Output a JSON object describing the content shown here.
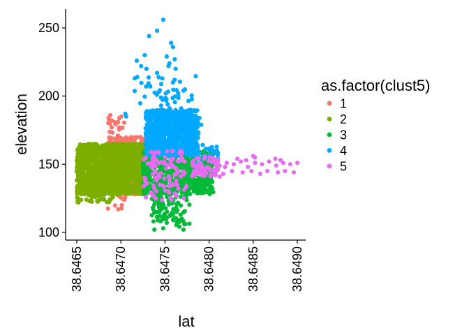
{
  "chart_data": {
    "type": "scatter",
    "title": "",
    "xlabel": "lat",
    "ylabel": "elevation",
    "xlim": [
      38.6464,
      38.649
    ],
    "ylim": [
      96,
      260
    ],
    "x_ticks": [
      38.6465,
      38.647,
      38.6475,
      38.648,
      38.6485,
      38.649
    ],
    "x_tick_labels": [
      "38.6465",
      "38.6470",
      "38.6475",
      "38.6480",
      "38.6485",
      "38.6490"
    ],
    "y_ticks": [
      100,
      150,
      200,
      250
    ],
    "y_tick_labels": [
      "100",
      "150",
      "200",
      "250"
    ],
    "grid": false,
    "legend": {
      "title": "as.factor(clust5)",
      "placement": "right"
    },
    "series": [
      {
        "name": "1",
        "color": "#F8766D",
        "clusters": [
          {
            "x_range": [
              38.64685,
              38.64727
            ],
            "y_range": [
              128,
              170
            ],
            "count": 420
          },
          {
            "x_range": [
              38.64685,
              38.64705
            ],
            "y_range": [
              160,
              186
            ],
            "count": 26
          },
          {
            "x_range": [
              38.64685,
              38.64705
            ],
            "y_range": [
              117,
              128
            ],
            "count": 8
          }
        ],
        "points": [
          [
            38.64688,
            186
          ],
          [
            38.64686,
            184
          ],
          [
            38.64693,
            181
          ],
          [
            38.64698,
            177
          ],
          [
            38.64695,
            166
          ],
          [
            38.64701,
            120
          ],
          [
            38.64697,
            117
          ],
          [
            38.64704,
            124
          ]
        ]
      },
      {
        "name": "2",
        "color": "#7CAE00",
        "clusters": [
          {
            "x_range": [
              38.6465,
              38.64728
            ],
            "y_range": [
              128,
              165
            ],
            "count": 1500
          },
          {
            "x_range": [
              38.6465,
              38.6469
            ],
            "y_range": [
              122,
              130
            ],
            "count": 40
          }
        ],
        "points": [
          [
            38.64652,
            122
          ],
          [
            38.64661,
            124
          ],
          [
            38.64671,
            126
          ],
          [
            38.64681,
            124
          ],
          [
            38.64691,
            126
          ]
        ]
      },
      {
        "name": "3",
        "color": "#00BA38",
        "clusters": [
          {
            "x_range": [
              38.64725,
              38.64805
            ],
            "y_range": [
              128,
              160
            ],
            "count": 700
          },
          {
            "x_range": [
              38.64735,
              38.6476
            ],
            "y_range": [
              108,
              128
            ],
            "count": 60
          },
          {
            "x_range": [
              38.64762,
              38.64778
            ],
            "y_range": [
              103,
              127
            ],
            "count": 28
          }
        ],
        "points": [
          [
            38.64738,
            102
          ],
          [
            38.64748,
            103
          ],
          [
            38.64771,
            102
          ],
          [
            38.64772,
            106
          ],
          [
            38.64769,
            110
          ],
          [
            38.64752,
            107
          ],
          [
            38.64744,
            112
          ]
        ]
      },
      {
        "name": "4",
        "color": "#00A9FF",
        "clusters": [
          {
            "x_range": [
              38.64728,
              38.64788
            ],
            "y_range": [
              156,
              190
            ],
            "count": 900
          },
          {
            "x_range": [
              38.64715,
              38.64785
            ],
            "y_range": [
              185,
              215
            ],
            "count": 45
          },
          {
            "x_range": [
              38.64785,
              38.6481
            ],
            "y_range": [
              150,
              165
            ],
            "count": 25
          }
        ],
        "points": [
          [
            38.64748,
            256
          ],
          [
            38.64741,
            248
          ],
          [
            38.64732,
            244
          ],
          [
            38.64757,
            239
          ],
          [
            38.64759,
            236
          ],
          [
            38.64727,
            230
          ],
          [
            38.64752,
            229
          ],
          [
            38.64755,
            224
          ],
          [
            38.64761,
            227
          ],
          [
            38.64754,
            222
          ],
          [
            38.64762,
            220
          ],
          [
            38.64718,
            226
          ],
          [
            38.64723,
            222
          ],
          [
            38.64729,
            220
          ],
          [
            38.64741,
            217
          ],
          [
            38.64747,
            213
          ],
          [
            38.64759,
            210
          ],
          [
            38.64771,
            204
          ],
          [
            38.64765,
            202
          ],
          [
            38.64743,
            203
          ],
          [
            38.64705,
            187
          ],
          [
            38.64706,
            185
          ],
          [
            38.64789,
            184
          ],
          [
            38.64791,
            179
          ],
          [
            38.64769,
            186
          ],
          [
            38.64781,
            176
          ],
          [
            38.64805,
            160
          ],
          [
            38.64808,
            158
          ],
          [
            38.64809,
            150
          ],
          [
            38.6481,
            154
          ]
        ]
      },
      {
        "name": "5",
        "color": "#E76BF3",
        "clusters": [
          {
            "x_range": [
              38.64726,
              38.64775
            ],
            "y_range": [
              123,
              160
            ],
            "count": 110
          },
          {
            "x_range": [
              38.6478,
              38.6481
            ],
            "y_range": [
              141,
              156
            ],
            "count": 60
          }
        ],
        "points": [
          [
            38.64812,
            149
          ],
          [
            38.6482,
            151
          ],
          [
            38.64828,
            150
          ],
          [
            38.64836,
            152
          ],
          [
            38.64844,
            148
          ],
          [
            38.64852,
            151
          ],
          [
            38.6486,
            150
          ],
          [
            38.64868,
            152
          ],
          [
            38.64876,
            149
          ],
          [
            38.64884,
            151
          ],
          [
            38.64892,
            150
          ],
          [
            38.649,
            151
          ],
          [
            38.64816,
            143
          ],
          [
            38.64826,
            145
          ],
          [
            38.64838,
            144
          ],
          [
            38.64848,
            145
          ],
          [
            38.64858,
            143
          ],
          [
            38.64866,
            145
          ],
          [
            38.64878,
            144
          ],
          [
            38.64886,
            145
          ],
          [
            38.64896,
            144
          ],
          [
            38.64832,
            154
          ],
          [
            38.6485,
            156
          ],
          [
            38.64875,
            154
          ],
          [
            38.64852,
            155
          ],
          [
            38.64812,
            141
          ],
          [
            38.6481,
            146
          ],
          [
            38.64818,
            148
          ],
          [
            38.64842,
            153
          ],
          [
            38.64881,
            153
          ]
        ]
      }
    ]
  }
}
